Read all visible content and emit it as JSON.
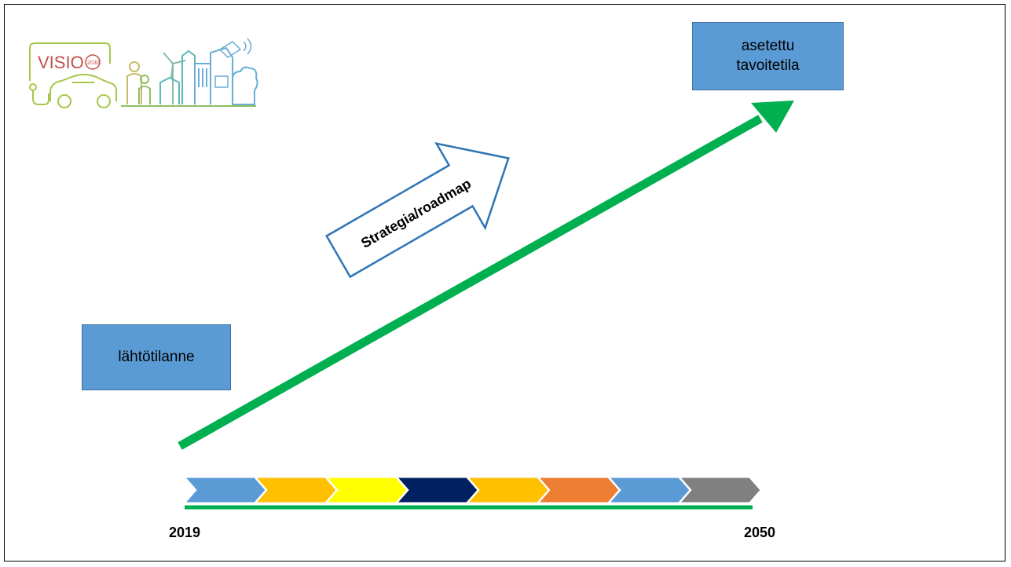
{
  "logo": {
    "text": "VISIO",
    "subtext": "2030"
  },
  "boxes": {
    "start_label": "lähtötilanne",
    "goal_label": "asetettu\ntavoitetila"
  },
  "strategy_arrow": {
    "label": "Strategia/roadmap"
  },
  "timeline": {
    "start_year": "2019",
    "end_year": "2050",
    "phase_colors": [
      "#5b9bd5",
      "#ffc000",
      "#ffff00",
      "#002060",
      "#ffc000",
      "#ed7d31",
      "#5b9bd5",
      "#808080"
    ]
  },
  "colors": {
    "trend_arrow": "#00b050",
    "timeline_line": "#00b050",
    "strategy_arrow_outline": "#2e75b6",
    "box_fill": "#5b9bd5"
  }
}
